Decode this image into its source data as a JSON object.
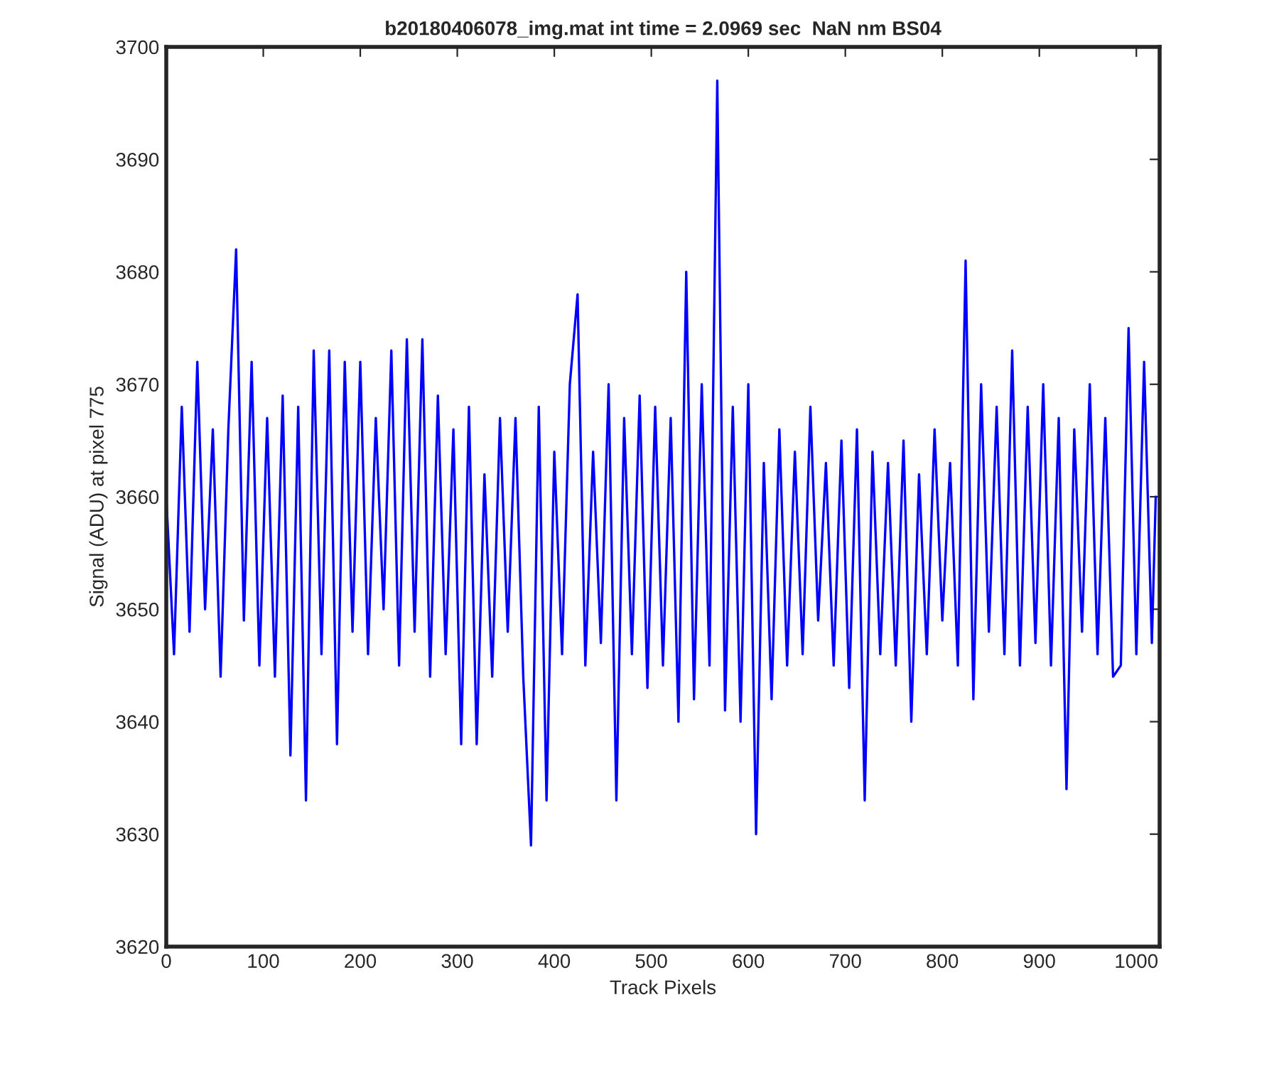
{
  "chart_data": {
    "type": "line",
    "title": "b20180406078_img.mat int time = 2.0969 sec  NaN nm BS04",
    "xlabel": "Track Pixels",
    "ylabel": "Signal (ADU) at pixel 775",
    "x": [
      0,
      8,
      16,
      24,
      32,
      40,
      48,
      56,
      64,
      72,
      80,
      88,
      96,
      104,
      112,
      120,
      128,
      136,
      144,
      152,
      160,
      168,
      176,
      184,
      192,
      200,
      208,
      216,
      224,
      232,
      240,
      248,
      256,
      264,
      272,
      280,
      288,
      296,
      304,
      312,
      320,
      328,
      336,
      344,
      352,
      360,
      368,
      376,
      384,
      392,
      400,
      408,
      416,
      424,
      432,
      440,
      448,
      456,
      464,
      472,
      480,
      488,
      496,
      504,
      512,
      520,
      528,
      536,
      544,
      552,
      560,
      568,
      576,
      584,
      592,
      600,
      608,
      616,
      624,
      632,
      640,
      648,
      656,
      664,
      672,
      680,
      688,
      696,
      704,
      712,
      720,
      728,
      736,
      744,
      752,
      760,
      768,
      776,
      784,
      792,
      800,
      808,
      816,
      824,
      832,
      840,
      848,
      856,
      864,
      872,
      880,
      888,
      896,
      904,
      912,
      920,
      928,
      936,
      944,
      952,
      960,
      968,
      976,
      984,
      992,
      1000,
      1008,
      1016,
      1020
    ],
    "series": [
      {
        "color": "#0000ff",
        "values": [
          3660,
          3646,
          3668,
          3648,
          3672,
          3650,
          3666,
          3644,
          3666,
          3682,
          3649,
          3672,
          3645,
          3667,
          3644,
          3669,
          3637,
          3668,
          3633,
          3673,
          3646,
          3673,
          3638,
          3672,
          3648,
          3672,
          3646,
          3667,
          3650,
          3673,
          3645,
          3674,
          3648,
          3674,
          3644,
          3669,
          3646,
          3666,
          3638,
          3668,
          3638,
          3662,
          3644,
          3667,
          3648,
          3667,
          3644,
          3629,
          3668,
          3633,
          3664,
          3646,
          3670,
          3678,
          3645,
          3664,
          3647,
          3670,
          3633,
          3667,
          3646,
          3669,
          3643,
          3668,
          3645,
          3667,
          3640,
          3680,
          3642,
          3670,
          3645,
          3697,
          3641,
          3668,
          3640,
          3670,
          3630,
          3663,
          3642,
          3666,
          3645,
          3664,
          3646,
          3668,
          3649,
          3663,
          3645,
          3665,
          3643,
          3666,
          3633,
          3664,
          3646,
          3663,
          3645,
          3665,
          3640,
          3662,
          3646,
          3666,
          3649,
          3663,
          3645,
          3681,
          3642,
          3670,
          3648,
          3668,
          3646,
          3673,
          3645,
          3668,
          3647,
          3670,
          3645,
          3667,
          3634,
          3666,
          3648,
          3670,
          3646,
          3667,
          3644,
          3645,
          3675,
          3646,
          3672,
          3647,
          3660
        ]
      }
    ],
    "xlim": [
      0,
      1024
    ],
    "xticks": [
      0,
      100,
      200,
      300,
      400,
      500,
      600,
      700,
      800,
      900,
      1000
    ],
    "ylim": [
      3620,
      3700
    ],
    "yticks": [
      3620,
      3630,
      3640,
      3650,
      3660,
      3670,
      3680,
      3690,
      3700
    ],
    "grid": false,
    "legend": false,
    "marker": "none",
    "line_style": "solid"
  }
}
